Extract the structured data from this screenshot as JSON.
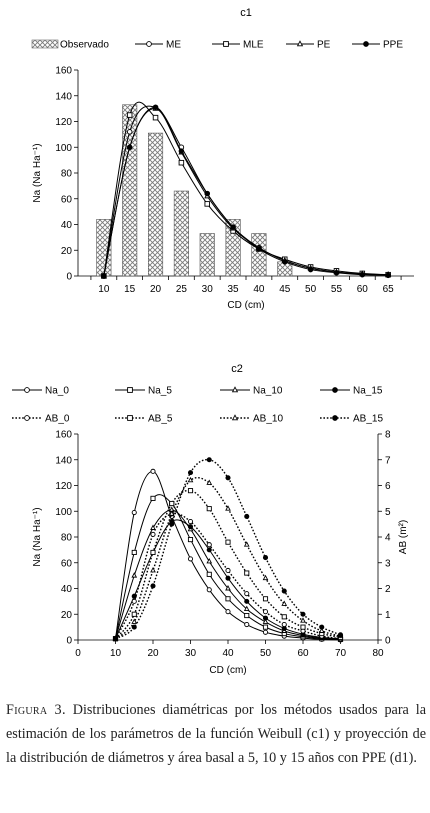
{
  "caption": {
    "label": "Figura 3.",
    "text": "Distribuciones diamétricas por los métodos usados para la estimación de los parámetros de la función Weibull (c1) y proyección de la distribución de diámetros y área basal a 5, 10 y 15 años con PPE (d1)."
  },
  "chart_data": [
    {
      "type": "bar",
      "title": "c1",
      "xlabel": "CD (cm)",
      "ylabel": "Na (Na Ha⁻¹)",
      "ylim": [
        0,
        160
      ],
      "yticks": [
        0,
        20,
        40,
        60,
        80,
        100,
        120,
        140,
        160
      ],
      "categories": [
        "10",
        "15",
        "20",
        "25",
        "30",
        "35",
        "40",
        "45",
        "50",
        "55",
        "60",
        "65"
      ],
      "legend_position": "top",
      "bars": {
        "name": "Observado",
        "values": [
          44,
          133,
          111,
          66,
          33,
          44,
          33,
          11,
          0,
          0,
          0,
          0
        ]
      },
      "series": [
        {
          "name": "ME",
          "marker": "circle-open",
          "values": [
            0,
            112,
            131,
            100,
            64,
            38,
            22,
            12,
            6,
            3,
            1.5,
            1
          ]
        },
        {
          "name": "MLE",
          "marker": "square-open",
          "values": [
            0,
            125,
            123,
            88,
            56,
            35,
            21,
            13,
            7,
            4,
            2,
            1
          ]
        },
        {
          "name": "PE",
          "marker": "triangle-open",
          "values": [
            0,
            100,
            130,
            96,
            62,
            37,
            22,
            12,
            6,
            3,
            1.5,
            1
          ]
        },
        {
          "name": "PPE",
          "marker": "circle-filled",
          "values": [
            0,
            100,
            131,
            97,
            64,
            38,
            21,
            11,
            5,
            2.5,
            1,
            0.5
          ]
        }
      ]
    },
    {
      "type": "line",
      "title": "c2",
      "xlabel": "CD (cm)",
      "ylabel": "Na (Na Ha⁻¹)",
      "y2label": "AB (m²)",
      "xlim": [
        0,
        80
      ],
      "xticks": [
        0,
        10,
        20,
        30,
        40,
        50,
        60,
        70,
        80
      ],
      "ylim": [
        0,
        160
      ],
      "yticks": [
        0,
        20,
        40,
        60,
        80,
        100,
        120,
        140,
        160
      ],
      "y2lim": [
        0,
        8
      ],
      "y2ticks": [
        0,
        1,
        2,
        3,
        4,
        5,
        6,
        7,
        8
      ],
      "legend_position": "top",
      "x": [
        10,
        15,
        20,
        25,
        30,
        35,
        40,
        45,
        50,
        55,
        60,
        65,
        70
      ],
      "series": [
        {
          "name": "Na_0",
          "axis": "left",
          "style": "solid",
          "marker": "circle-open",
          "values": [
            1,
            99,
            131,
            96,
            63,
            39,
            22,
            12,
            6,
            3,
            1.5,
            0.5,
            0
          ]
        },
        {
          "name": "Na_5",
          "axis": "left",
          "style": "solid",
          "marker": "square-open",
          "values": [
            1,
            68,
            110,
            106,
            78,
            51,
            32,
            19,
            10,
            5,
            2.5,
            1,
            0.5
          ]
        },
        {
          "name": "Na_10",
          "axis": "left",
          "style": "solid",
          "marker": "triangle-open",
          "values": [
            1,
            50,
            87,
            101,
            86,
            61,
            40,
            24,
            14,
            7,
            3.5,
            1.5,
            0.5
          ]
        },
        {
          "name": "Na_15",
          "axis": "left",
          "style": "solid",
          "marker": "circle-filled",
          "values": [
            1,
            34,
            68,
            92,
            88,
            70,
            48,
            30,
            17,
            9,
            4.5,
            2,
            1
          ]
        },
        {
          "name": "AB_0",
          "axis": "right",
          "style": "dotted",
          "marker": "circle-open",
          "values": [
            0.05,
            1.5,
            4.1,
            4.9,
            4.6,
            3.7,
            2.7,
            1.8,
            1.1,
            0.6,
            0.35,
            0.15,
            0.05
          ]
        },
        {
          "name": "AB_5",
          "axis": "right",
          "style": "dotted",
          "marker": "square-open",
          "values": [
            0.05,
            1.0,
            3.4,
            5.3,
            5.8,
            5.1,
            3.8,
            2.6,
            1.6,
            0.9,
            0.5,
            0.25,
            0.1
          ]
        },
        {
          "name": "AB_10",
          "axis": "right",
          "style": "dotted",
          "marker": "triangle-open",
          "values": [
            0.05,
            0.7,
            2.7,
            4.9,
            6.2,
            6.1,
            5.1,
            3.7,
            2.4,
            1.4,
            0.75,
            0.35,
            0.15
          ]
        },
        {
          "name": "AB_15",
          "axis": "right",
          "style": "dotted",
          "marker": "circle-filled",
          "values": [
            0.05,
            0.5,
            2.1,
            4.5,
            6.5,
            7.0,
            6.3,
            4.8,
            3.2,
            1.9,
            1.0,
            0.5,
            0.2
          ]
        }
      ]
    }
  ]
}
